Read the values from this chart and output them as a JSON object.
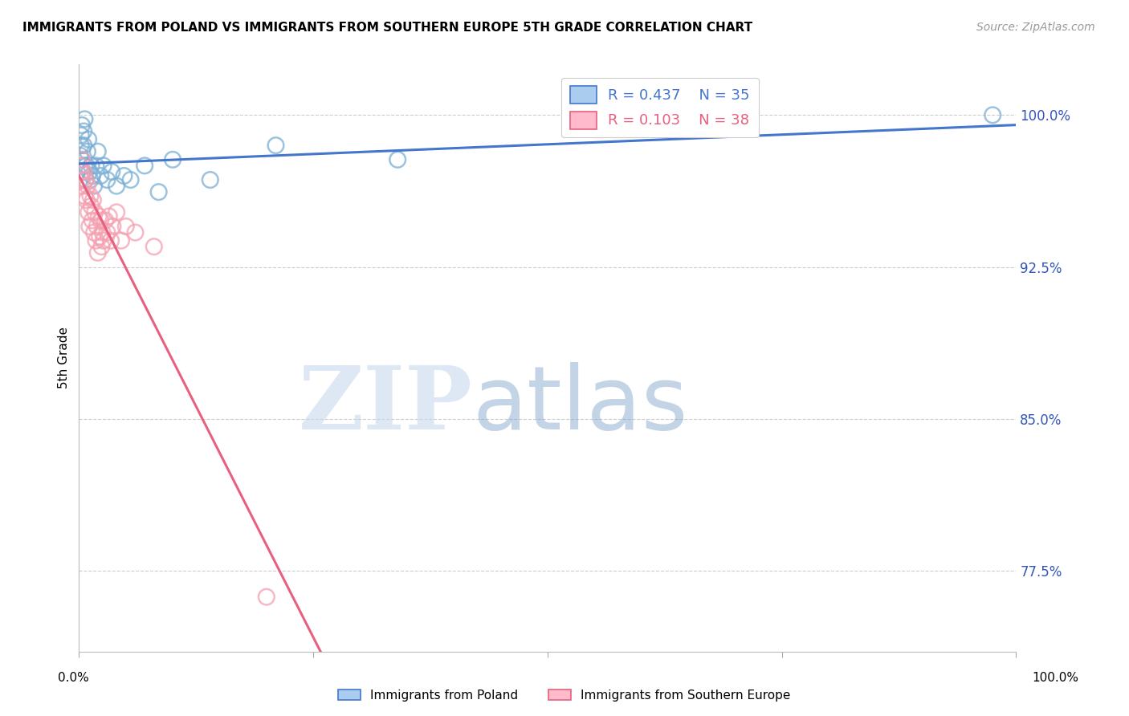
{
  "title": "IMMIGRANTS FROM POLAND VS IMMIGRANTS FROM SOUTHERN EUROPE 5TH GRADE CORRELATION CHART",
  "source": "Source: ZipAtlas.com",
  "ylabel": "5th Grade",
  "yticks": [
    0.775,
    0.85,
    0.925,
    1.0
  ],
  "ytick_labels": [
    "77.5%",
    "85.0%",
    "92.5%",
    "100.0%"
  ],
  "xlim": [
    0.0,
    1.0
  ],
  "ylim": [
    0.735,
    1.025
  ],
  "poland_color": "#7BAFD4",
  "southern_color": "#F4A0B0",
  "poland_R": 0.437,
  "poland_N": 35,
  "southern_R": 0.103,
  "southern_N": 38,
  "poland_line_color": "#4477CC",
  "southern_line_color": "#E86080",
  "poland_x": [
    0.001,
    0.002,
    0.002,
    0.003,
    0.003,
    0.004,
    0.005,
    0.005,
    0.006,
    0.006,
    0.007,
    0.008,
    0.009,
    0.01,
    0.011,
    0.012,
    0.013,
    0.014,
    0.016,
    0.018,
    0.02,
    0.023,
    0.026,
    0.03,
    0.035,
    0.04,
    0.048,
    0.055,
    0.07,
    0.085,
    0.1,
    0.14,
    0.21,
    0.34,
    0.975
  ],
  "poland_y": [
    0.98,
    0.985,
    0.99,
    0.978,
    0.995,
    0.972,
    0.985,
    0.992,
    0.975,
    0.998,
    0.968,
    0.975,
    0.982,
    0.988,
    0.972,
    0.968,
    0.975,
    0.97,
    0.965,
    0.975,
    0.982,
    0.97,
    0.975,
    0.968,
    0.972,
    0.965,
    0.97,
    0.968,
    0.975,
    0.962,
    0.978,
    0.968,
    0.985,
    0.978,
    1.0
  ],
  "southern_x": [
    0.001,
    0.002,
    0.003,
    0.003,
    0.004,
    0.005,
    0.006,
    0.007,
    0.008,
    0.009,
    0.01,
    0.011,
    0.012,
    0.013,
    0.014,
    0.015,
    0.016,
    0.017,
    0.018,
    0.019,
    0.02,
    0.021,
    0.022,
    0.023,
    0.024,
    0.025,
    0.026,
    0.028,
    0.03,
    0.032,
    0.034,
    0.036,
    0.04,
    0.045,
    0.05,
    0.06,
    0.08,
    0.2
  ],
  "southern_y": [
    0.975,
    0.972,
    0.968,
    0.978,
    0.965,
    0.972,
    0.96,
    0.968,
    0.958,
    0.965,
    0.952,
    0.945,
    0.96,
    0.955,
    0.948,
    0.958,
    0.942,
    0.952,
    0.938,
    0.945,
    0.932,
    0.95,
    0.94,
    0.948,
    0.935,
    0.942,
    0.938,
    0.948,
    0.942,
    0.95,
    0.938,
    0.945,
    0.952,
    0.938,
    0.945,
    0.942,
    0.935,
    0.762
  ]
}
